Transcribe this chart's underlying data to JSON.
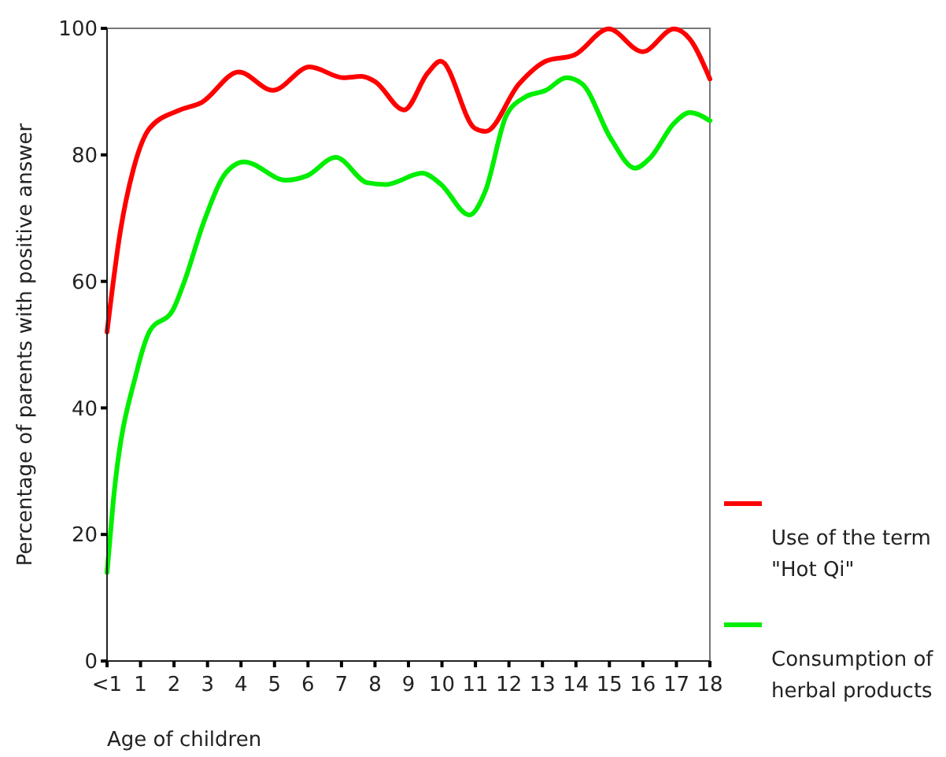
{
  "chart_data": {
    "type": "line",
    "xlabel": "Age of children",
    "ylabel": "Percentage of parents with positive answer",
    "xlim": [
      0,
      18
    ],
    "xticks": [
      {
        "value": 0,
        "label": "<1"
      },
      1,
      2,
      3,
      4,
      5,
      6,
      7,
      8,
      9,
      10,
      11,
      12,
      13,
      14,
      15,
      16,
      17,
      18
    ],
    "ylim": [
      0,
      100
    ],
    "yticks": [
      0,
      20,
      40,
      60,
      80,
      100
    ],
    "grid": false,
    "legend": "right",
    "marker": "none",
    "line_style": "solid",
    "series": [
      {
        "name": "Use of the term \"Hot Qi\"",
        "color": "#ff0000",
        "x": [
          0,
          0.4,
          0.8,
          1.27,
          2.13,
          2.83,
          3.93,
          4.95,
          6.05,
          7.06,
          7.6,
          8.0,
          8.87,
          9.57,
          9.96,
          10.98,
          11.3,
          12.3,
          13.1,
          13.96,
          14.98,
          15.99,
          16.93,
          17.4,
          18
        ],
        "values": [
          52,
          68,
          78,
          84.2,
          87,
          88.3,
          93.1,
          90.2,
          93.9,
          92.2,
          92.4,
          91.6,
          87.1,
          92.9,
          94.8,
          84.2,
          83.7,
          91.2,
          94.8,
          95.8,
          99.9,
          96.3,
          99.9,
          98.3,
          92
        ]
      },
      {
        "name": "Consumption of herbal products",
        "color": "#00ee00",
        "x": [
          0,
          0.18,
          0.88,
          1.27,
          1.97,
          2.29,
          2.91,
          3.54,
          4.09,
          5.34,
          5.97,
          6.83,
          7.77,
          8.32,
          9.41,
          9.96,
          10.82,
          11.29,
          11.92,
          12.47,
          13.1,
          13.72,
          14.19,
          15.05,
          15.76,
          16.23,
          16.93,
          17.4,
          18
        ],
        "values": [
          14,
          24.9,
          45.6,
          52.1,
          55.5,
          59.7,
          69.7,
          77.1,
          78.9,
          76,
          76.7,
          79.6,
          75.6,
          75.3,
          77.1,
          75.4,
          70.5,
          74.2,
          86.2,
          89.1,
          90.2,
          92.2,
          91.2,
          82.5,
          77.9,
          79.6,
          85,
          86.7,
          85.4
        ]
      }
    ]
  }
}
